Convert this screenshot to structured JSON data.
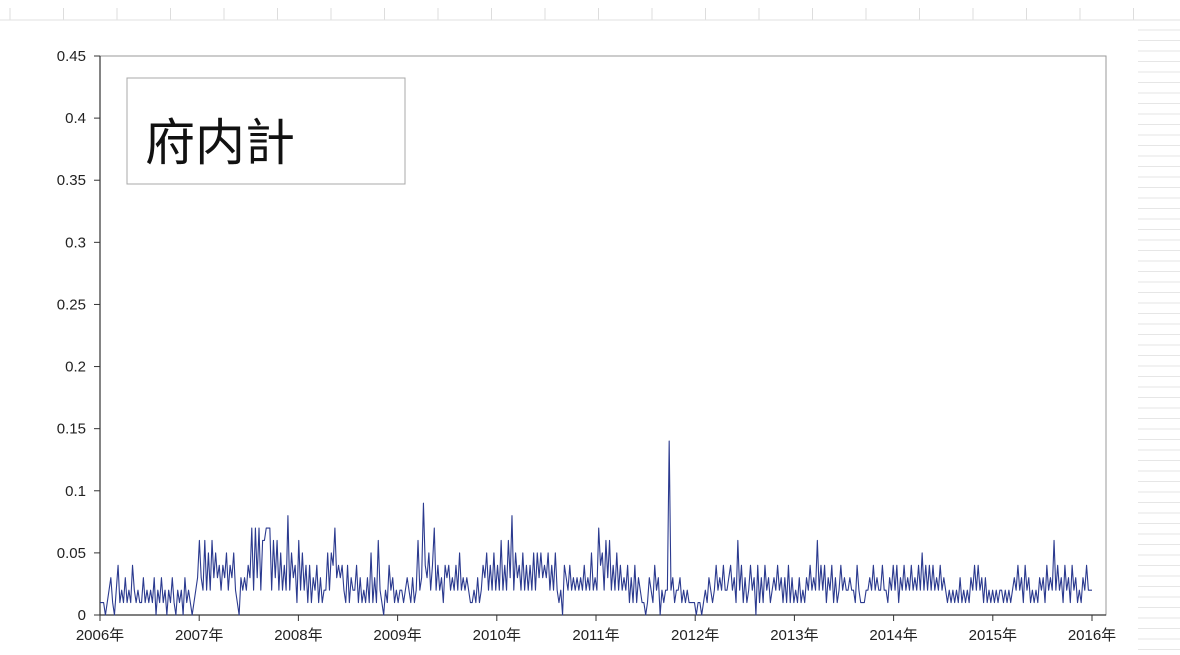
{
  "chart_data": {
    "type": "line",
    "title": "府内計",
    "xlabel": "",
    "ylabel": "",
    "x_tick_labels": [
      "2006年",
      "2007年",
      "2008年",
      "2009年",
      "2010年",
      "2011年",
      "2012年",
      "2013年",
      "2014年",
      "2015年",
      "2016年"
    ],
    "y_tick_labels": [
      "0",
      "0.05",
      "0.1",
      "0.15",
      "0.2",
      "0.25",
      "0.3",
      "0.35",
      "0.4",
      "0.45"
    ],
    "xlim": [
      2006.0,
      2016.0
    ],
    "ylim": [
      0,
      0.45
    ],
    "grid": false,
    "legend": "none",
    "line_color": "#2b3a8f",
    "sampling": "weekly",
    "series": [
      {
        "values": [
          0.01,
          0.01,
          0.01,
          0.0,
          0.01,
          0.02,
          0.03,
          0.01,
          0.0,
          0.02,
          0.04,
          0.01,
          0.02,
          0.01,
          0.03,
          0.01,
          0.02,
          0.01,
          0.04,
          0.02,
          0.01,
          0.02,
          0.01,
          0.01,
          0.03,
          0.01,
          0.02,
          0.01,
          0.02,
          0.01,
          0.03,
          0.0,
          0.02,
          0.01,
          0.03,
          0.01,
          0.02,
          0.0,
          0.02,
          0.01,
          0.03,
          0.01,
          0.0,
          0.02,
          0.01,
          0.02,
          0.0,
          0.03,
          0.01,
          0.02,
          0.01,
          0.0,
          0.01,
          0.02,
          0.03,
          0.06,
          0.03,
          0.02,
          0.06,
          0.02,
          0.05,
          0.02,
          0.06,
          0.03,
          0.05,
          0.03,
          0.04,
          0.02,
          0.04,
          0.03,
          0.05,
          0.02,
          0.04,
          0.03,
          0.05,
          0.02,
          0.01,
          0.0,
          0.03,
          0.02,
          0.03,
          0.02,
          0.04,
          0.03,
          0.07,
          0.02,
          0.07,
          0.03,
          0.07,
          0.02,
          0.06,
          0.06,
          0.07,
          0.07,
          0.07,
          0.02,
          0.06,
          0.03,
          0.06,
          0.02,
          0.05,
          0.02,
          0.04,
          0.02,
          0.08,
          0.02,
          0.05,
          0.03,
          0.04,
          0.01,
          0.06,
          0.02,
          0.05,
          0.02,
          0.04,
          0.01,
          0.04,
          0.01,
          0.03,
          0.02,
          0.04,
          0.01,
          0.03,
          0.01,
          0.02,
          0.02,
          0.05,
          0.02,
          0.05,
          0.04,
          0.07,
          0.03,
          0.04,
          0.03,
          0.04,
          0.02,
          0.01,
          0.04,
          0.01,
          0.03,
          0.02,
          0.02,
          0.04,
          0.01,
          0.03,
          0.01,
          0.02,
          0.01,
          0.03,
          0.01,
          0.05,
          0.01,
          0.03,
          0.01,
          0.06,
          0.02,
          0.01,
          0.0,
          0.02,
          0.01,
          0.04,
          0.02,
          0.03,
          0.01,
          0.02,
          0.01,
          0.02,
          0.02,
          0.01,
          0.02,
          0.03,
          0.02,
          0.01,
          0.03,
          0.01,
          0.02,
          0.06,
          0.02,
          0.03,
          0.09,
          0.04,
          0.03,
          0.05,
          0.02,
          0.04,
          0.07,
          0.02,
          0.04,
          0.02,
          0.03,
          0.01,
          0.04,
          0.03,
          0.04,
          0.02,
          0.03,
          0.02,
          0.04,
          0.02,
          0.05,
          0.02,
          0.03,
          0.02,
          0.03,
          0.02,
          0.01,
          0.01,
          0.02,
          0.01,
          0.03,
          0.01,
          0.02,
          0.04,
          0.03,
          0.05,
          0.02,
          0.04,
          0.02,
          0.05,
          0.02,
          0.04,
          0.02,
          0.06,
          0.02,
          0.04,
          0.02,
          0.06,
          0.03,
          0.08,
          0.02,
          0.05,
          0.03,
          0.04,
          0.02,
          0.05,
          0.02,
          0.04,
          0.02,
          0.04,
          0.02,
          0.05,
          0.02,
          0.05,
          0.03,
          0.05,
          0.03,
          0.04,
          0.03,
          0.05,
          0.02,
          0.04,
          0.02,
          0.05,
          0.02,
          0.01,
          0.02,
          0.0,
          0.04,
          0.03,
          0.02,
          0.04,
          0.02,
          0.03,
          0.02,
          0.03,
          0.02,
          0.03,
          0.02,
          0.04,
          0.02,
          0.03,
          0.02,
          0.05,
          0.02,
          0.03,
          0.02,
          0.07,
          0.04,
          0.05,
          0.02,
          0.06,
          0.03,
          0.06,
          0.02,
          0.04,
          0.02,
          0.05,
          0.02,
          0.04,
          0.02,
          0.03,
          0.02,
          0.04,
          0.01,
          0.03,
          0.01,
          0.04,
          0.01,
          0.03,
          0.02,
          0.01,
          0.01,
          0.0,
          0.01,
          0.03,
          0.02,
          0.01,
          0.04,
          0.02,
          0.03,
          0.0,
          0.02,
          0.01,
          0.02,
          0.02,
          0.14,
          0.02,
          0.03,
          0.01,
          0.02,
          0.02,
          0.03,
          0.01,
          0.02,
          0.01,
          0.02,
          0.01,
          0.01,
          0.01,
          0.01,
          0.0,
          0.01,
          0.01,
          0.0,
          0.01,
          0.02,
          0.01,
          0.03,
          0.02,
          0.01,
          0.02,
          0.04,
          0.02,
          0.03,
          0.02,
          0.04,
          0.02,
          0.02,
          0.03,
          0.04,
          0.02,
          0.03,
          0.01,
          0.06,
          0.02,
          0.04,
          0.01,
          0.03,
          0.01,
          0.02,
          0.04,
          0.02,
          0.03,
          0.0,
          0.04,
          0.01,
          0.03,
          0.01,
          0.04,
          0.02,
          0.03,
          0.01,
          0.02,
          0.03,
          0.02,
          0.04,
          0.02,
          0.03,
          0.01,
          0.03,
          0.01,
          0.04,
          0.01,
          0.03,
          0.01,
          0.02,
          0.01,
          0.03,
          0.01,
          0.02,
          0.01,
          0.03,
          0.02,
          0.04,
          0.02,
          0.03,
          0.02,
          0.06,
          0.02,
          0.04,
          0.02,
          0.04,
          0.01,
          0.03,
          0.02,
          0.04,
          0.01,
          0.03,
          0.01,
          0.02,
          0.04,
          0.02,
          0.03,
          0.02,
          0.02,
          0.03,
          0.02,
          0.02,
          0.01,
          0.04,
          0.02,
          0.01,
          0.01,
          0.01,
          0.02,
          0.02,
          0.03,
          0.02,
          0.04,
          0.02,
          0.03,
          0.02,
          0.02,
          0.04,
          0.02,
          0.02,
          0.01,
          0.03,
          0.02,
          0.04,
          0.02,
          0.04,
          0.01,
          0.03,
          0.02,
          0.04,
          0.02,
          0.03,
          0.02,
          0.04,
          0.02,
          0.03,
          0.02,
          0.04,
          0.02,
          0.05,
          0.02,
          0.04,
          0.02,
          0.04,
          0.02,
          0.04,
          0.02,
          0.03,
          0.02,
          0.04,
          0.02,
          0.03,
          0.02,
          0.01,
          0.02,
          0.01,
          0.02,
          0.01,
          0.02,
          0.01,
          0.03,
          0.01,
          0.02,
          0.01,
          0.02,
          0.01,
          0.03,
          0.02,
          0.04,
          0.02,
          0.04,
          0.02,
          0.03,
          0.01,
          0.03,
          0.01,
          0.02,
          0.01,
          0.02,
          0.01,
          0.02,
          0.01,
          0.02,
          0.02,
          0.01,
          0.02,
          0.01,
          0.02,
          0.01,
          0.02,
          0.03,
          0.02,
          0.04,
          0.02,
          0.03,
          0.01,
          0.04,
          0.02,
          0.03,
          0.01,
          0.02,
          0.01,
          0.02,
          0.01,
          0.03,
          0.02,
          0.03,
          0.01,
          0.04,
          0.02,
          0.03,
          0.02,
          0.06,
          0.02,
          0.04,
          0.02,
          0.03,
          0.01,
          0.04,
          0.02,
          0.03,
          0.01,
          0.04,
          0.02,
          0.03,
          0.01,
          0.02,
          0.01,
          0.03,
          0.02,
          0.04,
          0.02,
          0.02,
          0.02
        ]
      }
    ]
  }
}
